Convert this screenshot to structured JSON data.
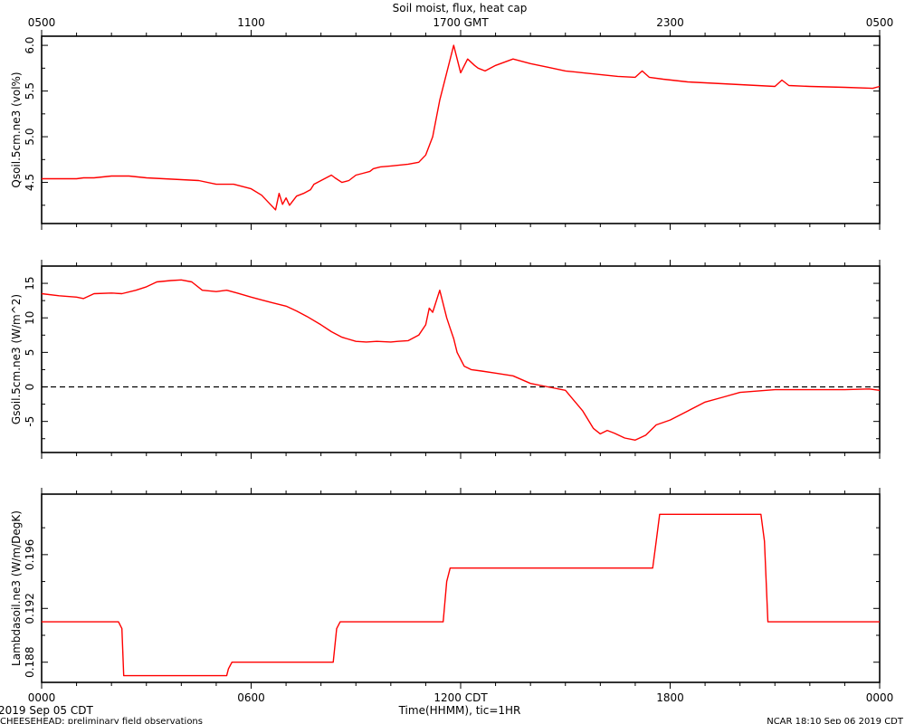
{
  "figure": {
    "title": "Soil moist, flux, heat cap",
    "top_axis_ticks": [
      "0500",
      "1100",
      "1700 GMT",
      "2300",
      "0500"
    ],
    "bottom_axis_ticks": [
      "0000",
      "0600",
      "1200 CDT",
      "1800",
      "0000"
    ],
    "xlabel": "Time(HHMM), tic=1HR",
    "date_label": "2019 Sep 05 CDT",
    "footer_left": "CHEESEHEAD: preliminary field observations",
    "footer_right": "NCAR 18:10 Sep 06 2019 CDT",
    "line_color": "#ff0000"
  },
  "chart_data": [
    {
      "type": "line",
      "ylabel": "Qsoil.5cm.ne3 (vol%)",
      "ylim": [
        4.05,
        6.1
      ],
      "yticks": [
        "4.5",
        "5.0",
        "5.5",
        "6.0"
      ],
      "x_units": "hours since 0000 CDT",
      "x": [
        0.0,
        1.0,
        1.2,
        1.5,
        2.0,
        2.5,
        3.0,
        3.5,
        4.0,
        4.5,
        5.0,
        5.5,
        6.0,
        6.3,
        6.5,
        6.7,
        6.8,
        6.9,
        7.0,
        7.1,
        7.3,
        7.5,
        7.7,
        7.8,
        8.0,
        8.3,
        8.4,
        8.6,
        8.8,
        9.0,
        9.2,
        9.4,
        9.5,
        9.7,
        10.0,
        10.5,
        10.8,
        11.0,
        11.2,
        11.4,
        11.6,
        11.8,
        12.0,
        12.2,
        12.4,
        12.5,
        12.7,
        13.0,
        13.5,
        14.0,
        14.5,
        15.0,
        15.5,
        16.0,
        16.5,
        17.0,
        17.2,
        17.4,
        17.8,
        18.5,
        19.5,
        20.5,
        21.0,
        21.2,
        21.4,
        22.0,
        23.0,
        23.8,
        24.0
      ],
      "y": [
        4.54,
        4.54,
        4.55,
        4.55,
        4.57,
        4.57,
        4.55,
        4.54,
        4.53,
        4.52,
        4.48,
        4.48,
        4.43,
        4.36,
        4.28,
        4.2,
        4.38,
        4.26,
        4.33,
        4.25,
        4.35,
        4.38,
        4.42,
        4.48,
        4.52,
        4.58,
        4.55,
        4.5,
        4.52,
        4.58,
        4.6,
        4.62,
        4.65,
        4.67,
        4.68,
        4.7,
        4.72,
        4.8,
        5.0,
        5.4,
        5.7,
        6.0,
        5.7,
        5.85,
        5.78,
        5.75,
        5.72,
        5.78,
        5.85,
        5.8,
        5.76,
        5.72,
        5.7,
        5.68,
        5.66,
        5.65,
        5.72,
        5.65,
        5.63,
        5.6,
        5.58,
        5.56,
        5.55,
        5.62,
        5.56,
        5.55,
        5.54,
        5.53,
        5.55
      ]
    },
    {
      "type": "line",
      "ylabel": "Gsoil.5cm.ne3 (W/m^2)",
      "ylim": [
        -9.5,
        17.5
      ],
      "yticks": [
        "-5",
        "0",
        "5",
        "10",
        "15"
      ],
      "reference_line": 0,
      "x_units": "hours since 0000 CDT",
      "x": [
        0.0,
        0.5,
        1.0,
        1.2,
        1.5,
        2.0,
        2.3,
        2.7,
        3.0,
        3.3,
        3.7,
        4.0,
        4.3,
        4.6,
        5.0,
        5.3,
        5.6,
        6.0,
        6.3,
        6.6,
        7.0,
        7.3,
        7.6,
        8.0,
        8.3,
        8.6,
        9.0,
        9.3,
        9.6,
        10.0,
        10.2,
        10.5,
        10.8,
        11.0,
        11.1,
        11.2,
        11.4,
        11.6,
        11.7,
        11.8,
        11.9,
        12.1,
        12.3,
        12.6,
        13.0,
        13.5,
        14.0,
        14.5,
        15.0,
        15.5,
        15.8,
        16.0,
        16.2,
        16.4,
        16.7,
        17.0,
        17.3,
        17.6,
        18.0,
        18.5,
        19.0,
        19.5,
        20.0,
        21.0,
        22.0,
        23.0,
        23.7,
        24.0
      ],
      "y": [
        13.5,
        13.2,
        13.0,
        12.8,
        13.5,
        13.6,
        13.5,
        14.0,
        14.5,
        15.2,
        15.4,
        15.5,
        15.2,
        14.0,
        13.8,
        14.0,
        13.6,
        13.0,
        12.6,
        12.2,
        11.7,
        11.0,
        10.2,
        9.0,
        8.0,
        7.2,
        6.6,
        6.5,
        6.6,
        6.5,
        6.6,
        6.7,
        7.5,
        9.0,
        11.4,
        10.8,
        14.0,
        10.0,
        8.5,
        7.0,
        5.0,
        3.0,
        2.5,
        2.3,
        2.0,
        1.6,
        0.5,
        0.0,
        -0.5,
        -3.5,
        -6.0,
        -6.8,
        -6.3,
        -6.7,
        -7.4,
        -7.7,
        -7.0,
        -5.5,
        -4.8,
        -3.5,
        -2.2,
        -1.5,
        -0.8,
        -0.4,
        -0.4,
        -0.4,
        -0.3,
        -0.5
      ]
    },
    {
      "type": "line",
      "ylabel": "Lambdasoil.ne3 (W/m/DegK)",
      "ylim": [
        0.1865,
        0.2005
      ],
      "yticks": [
        "0.188",
        "0.192",
        "0.196"
      ],
      "x_units": "hours since 0000 CDT",
      "x": [
        0.0,
        2.2,
        2.3,
        2.35,
        5.3,
        5.35,
        5.45,
        8.35,
        8.45,
        8.55,
        11.5,
        11.6,
        11.7,
        17.5,
        17.6,
        17.7,
        20.6,
        20.7,
        20.8,
        24.0
      ],
      "y": [
        0.191,
        0.191,
        0.1905,
        0.187,
        0.187,
        0.1875,
        0.188,
        0.188,
        0.1905,
        0.191,
        0.191,
        0.194,
        0.195,
        0.195,
        0.197,
        0.199,
        0.199,
        0.197,
        0.191,
        0.191
      ]
    }
  ]
}
